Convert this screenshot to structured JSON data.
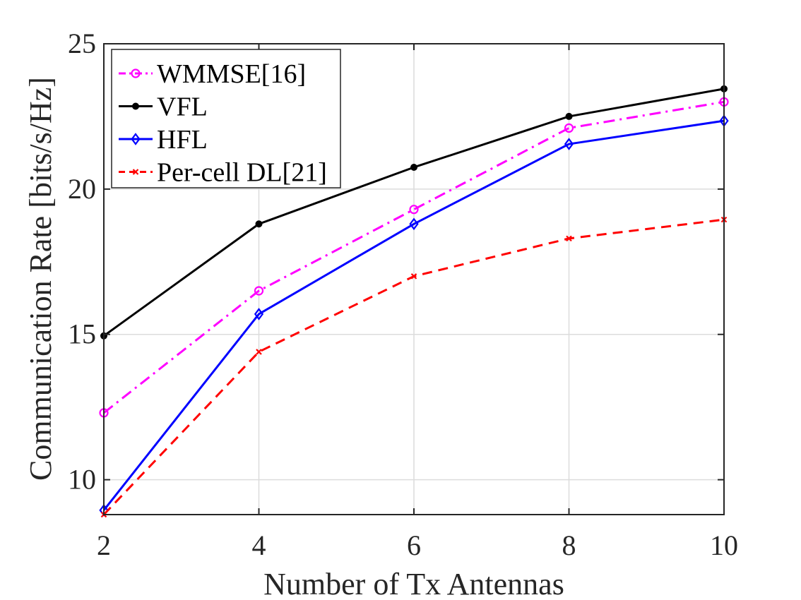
{
  "chart_data": {
    "type": "line",
    "title": "",
    "xlabel": "Number of Tx Antennas",
    "ylabel": "Communication Rate [bits/s/Hz]",
    "xlim": [
      2,
      10
    ],
    "ylim": [
      8.8,
      25
    ],
    "xticks": [
      2,
      4,
      6,
      8,
      10
    ],
    "yticks": [
      10,
      15,
      20,
      25
    ],
    "x_tick_labels": [
      "2",
      "4",
      "6",
      "8",
      "10"
    ],
    "y_tick_labels": [
      "10",
      "15",
      "20",
      "25"
    ],
    "grid": true,
    "legend_position": "top-left",
    "x": [
      2,
      4,
      6,
      8,
      10
    ],
    "series": [
      {
        "name": "WMMSE[16]",
        "values": [
          12.3,
          16.5,
          19.3,
          22.1,
          23.0
        ],
        "color": "#ff00ff",
        "dash": "dashdot",
        "marker": "circle"
      },
      {
        "name": "VFL",
        "values": [
          14.95,
          18.8,
          20.75,
          22.5,
          23.45
        ],
        "color": "#000000",
        "dash": "solid",
        "marker": "dot"
      },
      {
        "name": "HFL",
        "values": [
          8.95,
          15.7,
          18.8,
          21.55,
          22.35
        ],
        "color": "#0000ff",
        "dash": "solid",
        "marker": "diamond"
      },
      {
        "name": "Per-cell DL[21]",
        "values": [
          8.8,
          14.4,
          17.0,
          18.3,
          18.95
        ],
        "color": "#ff0000",
        "dash": "dashed",
        "marker": "x"
      }
    ]
  }
}
